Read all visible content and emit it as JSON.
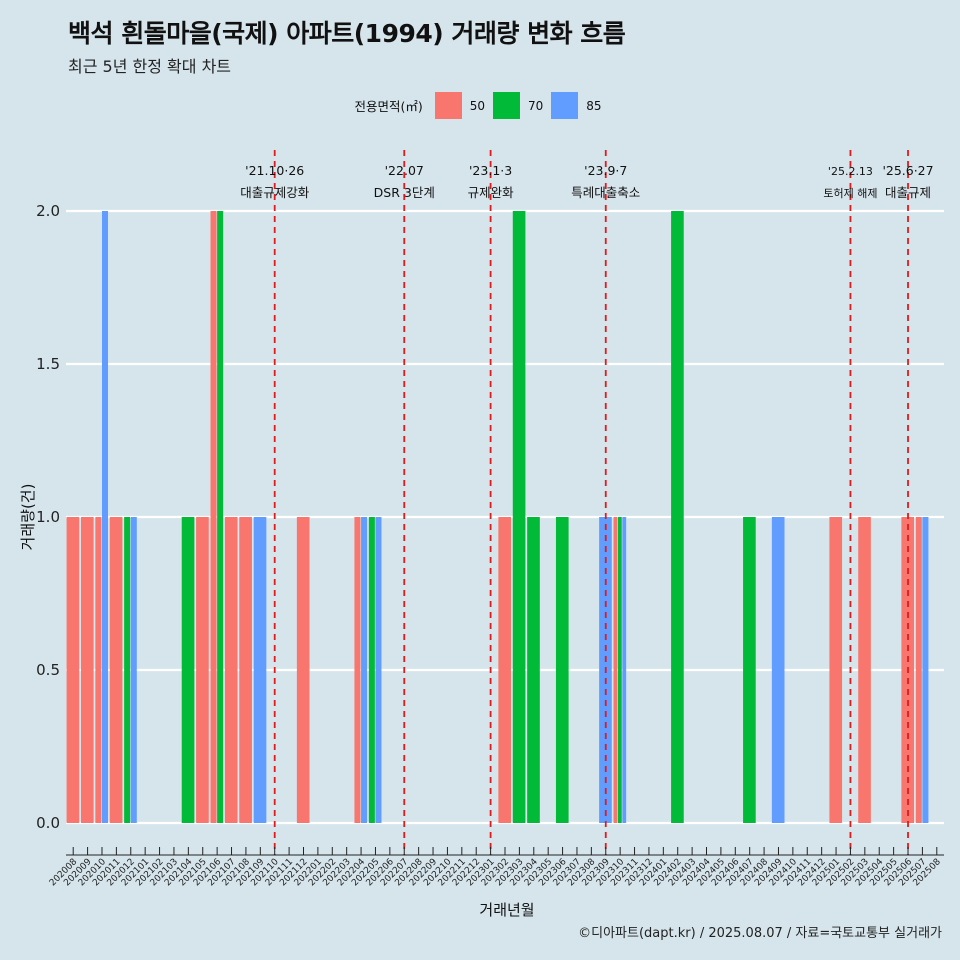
{
  "title": "백석 흰돌마을(국제) 아파트(1994) 거래량 변화 흐름",
  "subtitle": "최근 5년 한정 확대 차트",
  "caption": "©디아파트(dapt.kr) / 2025.08.07 / 자료=국토교통부 실거래가",
  "legend": {
    "title": "전용면적(㎡)",
    "items": [
      {
        "label": "50",
        "color": "#f8766d"
      },
      {
        "label": "70",
        "color": "#00ba38"
      },
      {
        "label": "85",
        "color": "#619cff"
      }
    ]
  },
  "chart_data": {
    "type": "bar",
    "xlabel": "거래년월",
    "ylabel": "거래량(건)",
    "ylim": [
      0,
      2
    ],
    "yticks": [
      "0.0",
      "0.5",
      "1.0",
      "1.5",
      "2.0"
    ],
    "grid": "horizontal",
    "legend_position": "top",
    "categories": [
      "202008",
      "202009",
      "202010",
      "202011",
      "202012",
      "202101",
      "202102",
      "202103",
      "202104",
      "202105",
      "202106",
      "202107",
      "202108",
      "202109",
      "202110",
      "202111",
      "202112",
      "202201",
      "202202",
      "202203",
      "202204",
      "202205",
      "202206",
      "202207",
      "202208",
      "202209",
      "202210",
      "202211",
      "202212",
      "202301",
      "202302",
      "202303",
      "202304",
      "202305",
      "202306",
      "202307",
      "202308",
      "202309",
      "202310",
      "202311",
      "202312",
      "202401",
      "202402",
      "202403",
      "202404",
      "202405",
      "202406",
      "202407",
      "202408",
      "202409",
      "202410",
      "202411",
      "202412",
      "202501",
      "202502",
      "202503",
      "202504",
      "202505",
      "202506",
      "202507",
      "202508"
    ],
    "series": [
      {
        "name": "50",
        "color": "#f8766d",
        "values": [
          1,
          1,
          1,
          1,
          0,
          0,
          0,
          0,
          0,
          1,
          2,
          1,
          1,
          0,
          0,
          0,
          1,
          0,
          0,
          0,
          1,
          0,
          0,
          0,
          0,
          0,
          0,
          0,
          0,
          0,
          1,
          0,
          0,
          0,
          0,
          0,
          0,
          0,
          1,
          0,
          0,
          0,
          0,
          0,
          0,
          0,
          0,
          0,
          0,
          0,
          0,
          0,
          0,
          1,
          0,
          1,
          0,
          0,
          1,
          1,
          0
        ]
      },
      {
        "name": "70",
        "color": "#00ba38",
        "values": [
          0,
          0,
          0,
          0,
          1,
          0,
          0,
          0,
          1,
          0,
          2,
          0,
          0,
          0,
          0,
          0,
          0,
          0,
          0,
          0,
          0,
          1,
          0,
          0,
          0,
          0,
          0,
          0,
          0,
          0,
          0,
          2,
          1,
          0,
          1,
          0,
          0,
          0,
          1,
          0,
          0,
          0,
          2,
          0,
          0,
          0,
          0,
          1,
          0,
          0,
          0,
          0,
          0,
          0,
          0,
          0,
          0,
          0,
          0,
          0,
          0
        ]
      },
      {
        "name": "85",
        "color": "#619cff",
        "values": [
          0,
          0,
          2,
          0,
          1,
          0,
          0,
          0,
          0,
          0,
          0,
          0,
          0,
          1,
          0,
          0,
          0,
          0,
          0,
          0,
          1,
          1,
          0,
          0,
          0,
          0,
          0,
          0,
          0,
          0,
          0,
          0,
          0,
          0,
          0,
          0,
          0,
          1,
          1,
          0,
          0,
          0,
          0,
          0,
          0,
          0,
          0,
          0,
          0,
          1,
          0,
          0,
          0,
          0,
          0,
          0,
          0,
          0,
          0,
          1,
          0
        ]
      }
    ],
    "annotations": [
      {
        "x": "202110",
        "date": "'21.10·26",
        "label": "대출규제강화"
      },
      {
        "x": "202207",
        "date": "'22.07",
        "label": "DSR 3단계"
      },
      {
        "x": "202301",
        "date": "'23.1·3",
        "label": "규제완화"
      },
      {
        "x": "202309",
        "date": "'23.9·7",
        "label": "특례대출축소"
      },
      {
        "x": "202502",
        "date": "'25.2.13",
        "label": "토허제 해제"
      },
      {
        "x": "202506",
        "date": "'25.6·27",
        "label": "대출규제"
      }
    ]
  }
}
